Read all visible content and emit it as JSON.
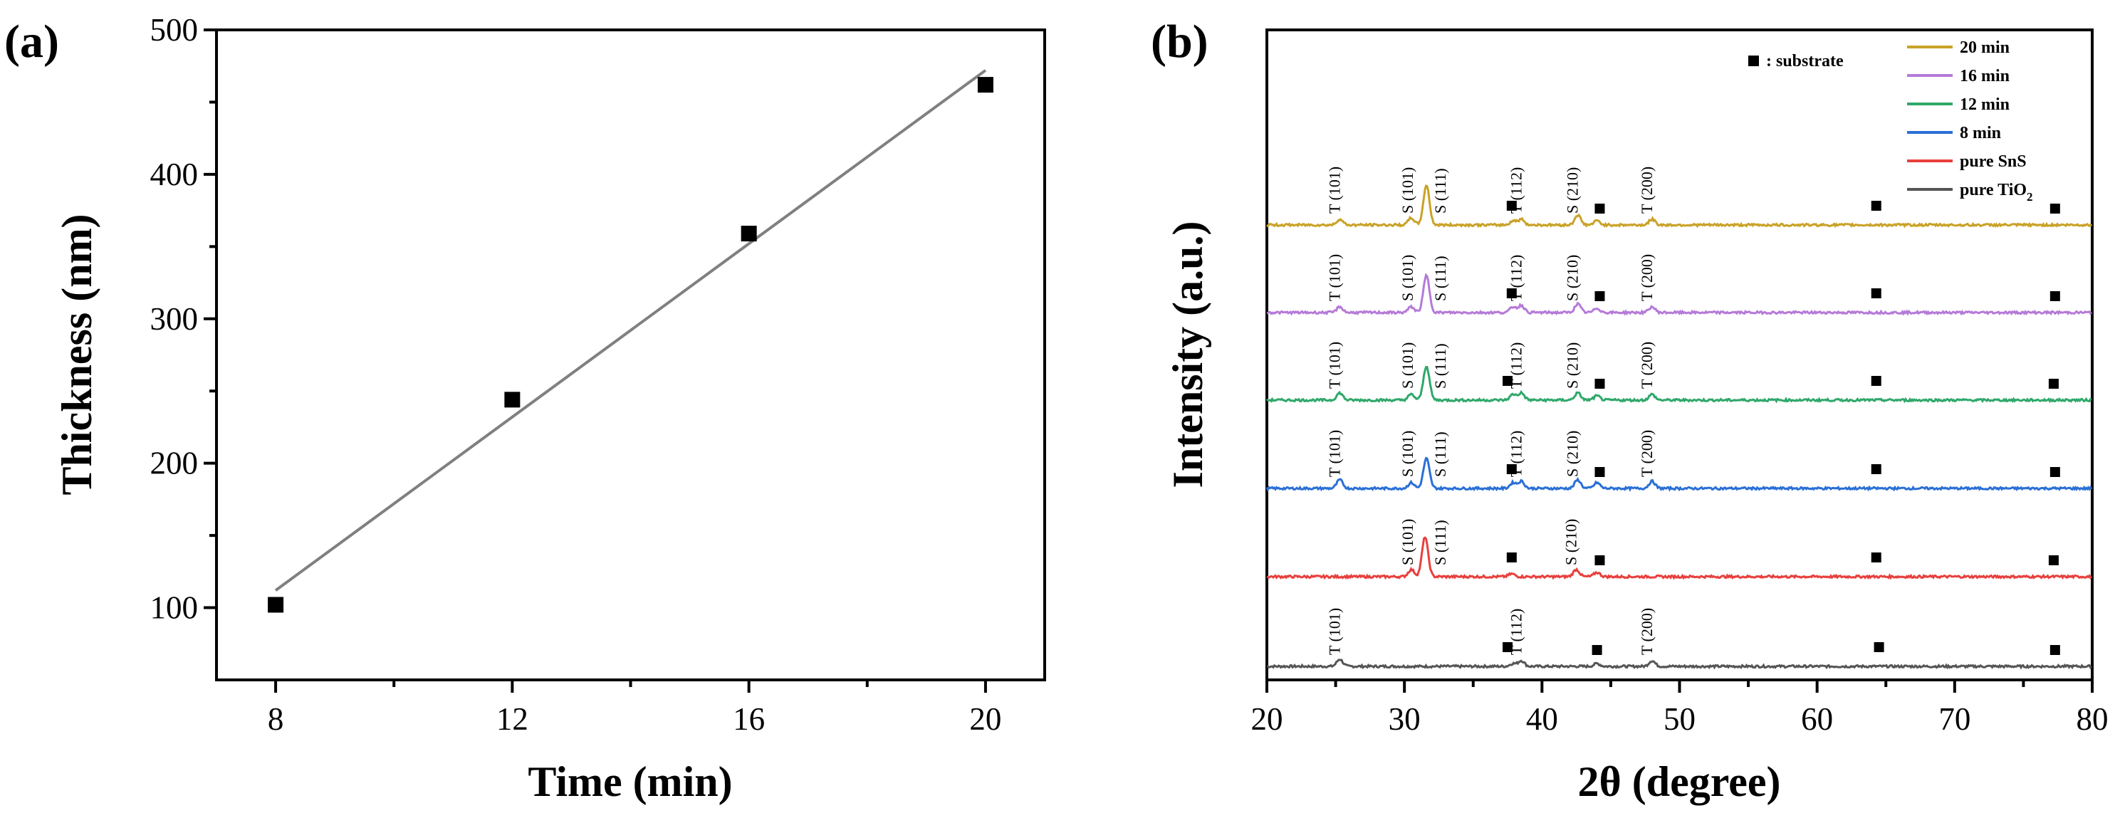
{
  "chart_data": [
    {
      "panel": "(a)",
      "type": "scatter",
      "xlabel": "Time (min)",
      "ylabel": "Thickness (nm)",
      "xlim": [
        7,
        21
      ],
      "ylim": [
        50,
        500
      ],
      "xticks": [
        8,
        12,
        16,
        20
      ],
      "yticks": [
        100,
        200,
        300,
        400,
        500
      ],
      "points": {
        "x": [
          8,
          12,
          16,
          20
        ],
        "y": [
          102,
          244,
          359,
          462
        ]
      },
      "fit_line": {
        "x": [
          8,
          20
        ],
        "y": [
          112,
          472
        ]
      },
      "colors": {
        "points": "#000000",
        "fit": "#808080"
      }
    },
    {
      "panel": "(b)",
      "type": "line",
      "xlabel": "2θ (degree)",
      "ylabel": "Intensity (a.u.)",
      "xlim": [
        20,
        80
      ],
      "xticks": [
        20,
        30,
        40,
        50,
        60,
        70,
        80
      ],
      "substrate_legend": ": substrate",
      "series": [
        {
          "name": "pure TiO",
          "subscript": "2",
          "color": "#555555",
          "baseline": 0,
          "peaks": [
            {
              "x": 25.3,
              "h": 10
            },
            {
              "x": 37.9,
              "h": 4
            },
            {
              "x": 38.5,
              "h": 8
            },
            {
              "x": 44.0,
              "h": 4
            },
            {
              "x": 48.0,
              "h": 8
            }
          ],
          "labels": [
            {
              "x": 25.3,
              "text": "T (101)"
            },
            {
              "x": 38.5,
              "text": "T (112)"
            },
            {
              "x": 48.0,
              "text": "T (200)"
            }
          ],
          "substrate": [
            37.5,
            44.0,
            64.5,
            77.3
          ]
        },
        {
          "name": "pure SnS",
          "color": "#e8403d",
          "baseline": 1,
          "peaks": [
            {
              "x": 30.5,
              "h": 10
            },
            {
              "x": 31.5,
              "h": 56
            },
            {
              "x": 37.8,
              "h": 4
            },
            {
              "x": 42.5,
              "h": 10
            },
            {
              "x": 44.0,
              "h": 6
            }
          ],
          "labels": [
            {
              "x": 30.6,
              "text": "S (101)"
            },
            {
              "x": 33.0,
              "text": "S (111)"
            },
            {
              "x": 42.5,
              "text": "S (210)"
            }
          ],
          "substrate": [
            37.8,
            44.2,
            64.3,
            77.2
          ]
        },
        {
          "name": "8 min",
          "color": "#2a6fd6",
          "baseline": 2,
          "peaks": [
            {
              "x": 25.3,
              "h": 12
            },
            {
              "x": 30.5,
              "h": 8
            },
            {
              "x": 31.6,
              "h": 42
            },
            {
              "x": 37.9,
              "h": 8
            },
            {
              "x": 38.5,
              "h": 10
            },
            {
              "x": 42.6,
              "h": 12
            },
            {
              "x": 44.0,
              "h": 8
            },
            {
              "x": 48.0,
              "h": 10
            }
          ],
          "labels": [
            {
              "x": 25.3,
              "text": "T (101)"
            },
            {
              "x": 30.6,
              "text": "S (101)"
            },
            {
              "x": 33.0,
              "text": "S (111)"
            },
            {
              "x": 38.5,
              "text": "T (112)"
            },
            {
              "x": 42.6,
              "text": "S (210)"
            },
            {
              "x": 48.0,
              "text": "T (200)"
            }
          ],
          "substrate": [
            37.8,
            44.2,
            64.3,
            77.3
          ]
        },
        {
          "name": "12 min",
          "color": "#2fa86a",
          "baseline": 3,
          "peaks": [
            {
              "x": 25.3,
              "h": 10
            },
            {
              "x": 30.5,
              "h": 8
            },
            {
              "x": 31.6,
              "h": 48
            },
            {
              "x": 37.9,
              "h": 8
            },
            {
              "x": 38.5,
              "h": 10
            },
            {
              "x": 42.6,
              "h": 10
            },
            {
              "x": 44.0,
              "h": 6
            },
            {
              "x": 48.0,
              "h": 8
            }
          ],
          "labels": [
            {
              "x": 25.3,
              "text": "T (101)"
            },
            {
              "x": 30.6,
              "text": "S (101)"
            },
            {
              "x": 33.0,
              "text": "S (111)"
            },
            {
              "x": 38.5,
              "text": "T (112)"
            },
            {
              "x": 42.6,
              "text": "S (210)"
            },
            {
              "x": 48.0,
              "text": "T (200)"
            }
          ],
          "substrate": [
            37.5,
            44.2,
            64.3,
            77.2
          ]
        },
        {
          "name": "16 min",
          "color": "#b57ad8",
          "baseline": 4,
          "peaks": [
            {
              "x": 25.3,
              "h": 8
            },
            {
              "x": 30.5,
              "h": 8
            },
            {
              "x": 31.6,
              "h": 52
            },
            {
              "x": 37.9,
              "h": 8
            },
            {
              "x": 38.5,
              "h": 10
            },
            {
              "x": 42.6,
              "h": 12
            },
            {
              "x": 44.0,
              "h": 6
            },
            {
              "x": 48.0,
              "h": 8
            }
          ],
          "labels": [
            {
              "x": 25.3,
              "text": "T (101)"
            },
            {
              "x": 30.6,
              "text": "S (101)"
            },
            {
              "x": 33.0,
              "text": "S (111)"
            },
            {
              "x": 38.5,
              "text": "T (112)"
            },
            {
              "x": 42.6,
              "text": "S (210)"
            },
            {
              "x": 48.0,
              "text": "T (200)"
            }
          ],
          "substrate": [
            37.8,
            44.2,
            64.3,
            77.3
          ]
        },
        {
          "name": "20 min",
          "color": "#c9a227",
          "baseline": 5,
          "peaks": [
            {
              "x": 25.3,
              "h": 8
            },
            {
              "x": 30.5,
              "h": 10
            },
            {
              "x": 31.6,
              "h": 56
            },
            {
              "x": 37.9,
              "h": 6
            },
            {
              "x": 38.5,
              "h": 8
            },
            {
              "x": 42.6,
              "h": 14
            },
            {
              "x": 44.0,
              "h": 6
            },
            {
              "x": 48.0,
              "h": 8
            }
          ],
          "labels": [
            {
              "x": 25.3,
              "text": "T (101)"
            },
            {
              "x": 30.6,
              "text": "S (101)"
            },
            {
              "x": 33.0,
              "text": "S (111)"
            },
            {
              "x": 38.5,
              "text": "T (112)"
            },
            {
              "x": 42.6,
              "text": "S (210)"
            },
            {
              "x": 48.0,
              "text": "T (200)"
            }
          ],
          "substrate": [
            37.8,
            44.2,
            64.3,
            77.3
          ]
        }
      ],
      "legend_order": [
        "20 min",
        "16 min",
        "12 min",
        "8 min",
        "pure SnS",
        "pure TiO"
      ]
    }
  ]
}
